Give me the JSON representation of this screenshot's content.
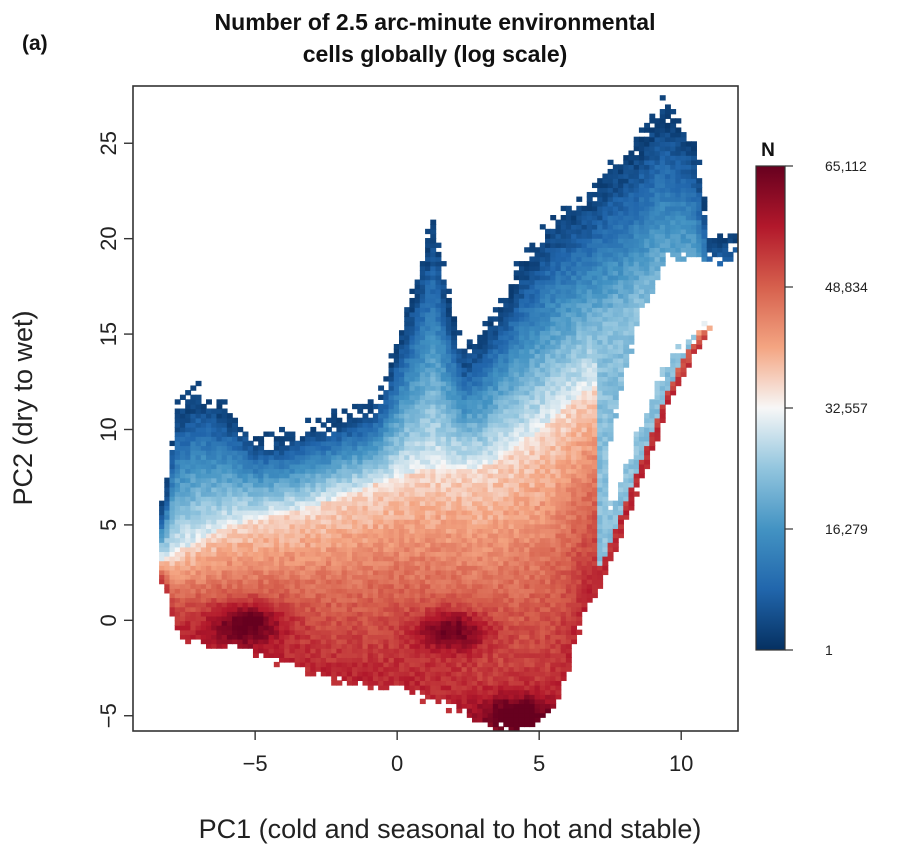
{
  "panel_label": "(a)",
  "chart_data": {
    "type": "heatmap",
    "title": "Number of 2.5 arc-minute environmental cells globally (log scale)",
    "title_lines": [
      "Number of 2.5 arc-minute environmental",
      "cells globally (log scale)"
    ],
    "xlabel": "PC1 (cold and seasonal to hot and stable)",
    "ylabel": "PC2 (dry to wet)",
    "xlim": [
      -9.3,
      12.0
    ],
    "ylim": [
      -5.8,
      28.0
    ],
    "x_ticks": [
      -5,
      0,
      5,
      10
    ],
    "x_tick_labels": [
      "−5",
      "0",
      "5",
      "10"
    ],
    "y_ticks": [
      -5,
      0,
      5,
      10,
      15,
      20,
      25
    ],
    "y_tick_labels": [
      "−5",
      "0",
      "5",
      "10",
      "15",
      "20",
      "25"
    ],
    "colorbar": {
      "title": "N",
      "scale": "log",
      "tick_labels": [
        "65,112",
        "48,834",
        "32,557",
        "16,279",
        "1"
      ],
      "tick_fractions": [
        1.0,
        0.75,
        0.5,
        0.25,
        0.0
      ],
      "colors": [
        "#053061",
        "#2166ac",
        "#4393c3",
        "#92c5de",
        "#f7f7f7",
        "#f4a582",
        "#d6604d",
        "#b2182b",
        "#67001f"
      ]
    },
    "density_peaks": [
      {
        "pc1": -5.3,
        "pc2": -0.1
      },
      {
        "pc1": 4.2,
        "pc2": -5.0
      },
      {
        "pc1": 2.0,
        "pc2": -0.5
      }
    ],
    "grid": false,
    "legend_position": "right"
  }
}
